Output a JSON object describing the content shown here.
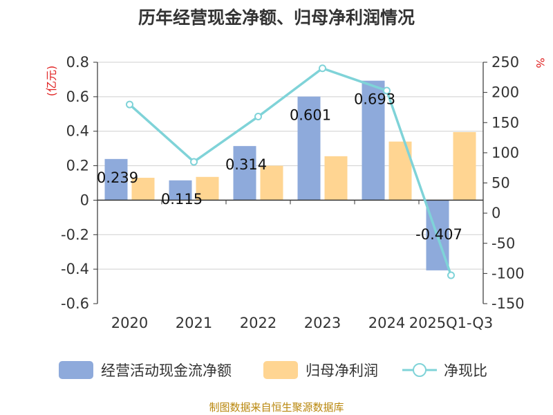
{
  "colors": {
    "bar_cash": "#8eaadb",
    "bar_profit": "#ffd592",
    "line_ratio": "#7fd3d8",
    "axis": "#333333",
    "grid": "#cfcfcf",
    "unit_text": "#e02020",
    "source_text": "#b8860b"
  },
  "chart_data": {
    "type": "bar",
    "title": "历年经营现金净额、归母净利润情况",
    "categories": [
      "2020",
      "2021",
      "2022",
      "2023",
      "2024",
      "2025Q1-Q3"
    ],
    "series": [
      {
        "name": "经营活动现金流净额",
        "kind": "bar",
        "axis": "left",
        "values": [
          0.239,
          0.115,
          0.314,
          0.601,
          0.693,
          -0.407
        ],
        "labels": [
          "0.239",
          "0.115",
          "0.314",
          "0.601",
          "0.693",
          "-0.407"
        ]
      },
      {
        "name": "归母净利润",
        "kind": "bar",
        "axis": "left",
        "values": [
          0.13,
          0.135,
          0.2,
          0.255,
          0.34,
          0.395
        ]
      },
      {
        "name": "净现比",
        "kind": "line",
        "axis": "right",
        "values": [
          180,
          85,
          160,
          240,
          203,
          -103
        ]
      }
    ],
    "y_left": {
      "unit": "(亿元)",
      "min": -0.6,
      "max": 0.8,
      "ticks": [
        -0.6,
        -0.4,
        -0.2,
        0,
        0.2,
        0.4,
        0.6,
        0.8
      ],
      "tick_labels": [
        "-0.6",
        "-0.4",
        "-0.2",
        "0",
        "0.2",
        "0.4",
        "0.6",
        "0.8"
      ]
    },
    "y_right": {
      "unit": "%",
      "min": -150,
      "max": 250,
      "ticks": [
        -150,
        -100,
        -50,
        0,
        50,
        100,
        150,
        200,
        250
      ],
      "tick_labels": [
        "-150",
        "-100",
        "-50",
        "0",
        "50",
        "100",
        "150",
        "200",
        "250"
      ]
    },
    "grid": true,
    "legend_position": "bottom"
  },
  "source": "制图数据来自恒生聚源数据库"
}
